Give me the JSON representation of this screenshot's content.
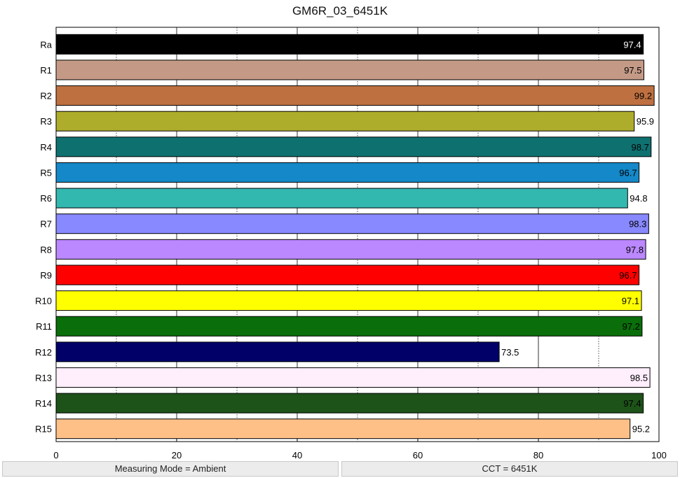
{
  "chart_data": {
    "type": "bar",
    "orientation": "horizontal",
    "title": "GM6R_03_6451K",
    "categories": [
      "Ra",
      "R1",
      "R2",
      "R3",
      "R4",
      "R5",
      "R6",
      "R7",
      "R8",
      "R9",
      "R10",
      "R11",
      "R12",
      "R13",
      "R14",
      "R15"
    ],
    "values": [
      97.4,
      97.5,
      99.2,
      95.9,
      98.7,
      96.7,
      94.8,
      98.3,
      97.8,
      96.7,
      97.1,
      97.2,
      73.5,
      98.5,
      97.4,
      95.2
    ],
    "value_labels": [
      "97.4",
      "97.5",
      "99.2",
      "95.9",
      "98.7",
      "96.7",
      "94.8",
      "98.3",
      "97.8",
      "96.7",
      "97.1",
      "97.2",
      "73.5",
      "98.5",
      "97.4",
      "95.2"
    ],
    "colors": [
      "#000000",
      "#c49a87",
      "#bf7040",
      "#aeac2b",
      "#0f7070",
      "#1488c8",
      "#33b8b0",
      "#8888ff",
      "#bb88ff",
      "#ff0000",
      "#ffff00",
      "#0a6e0a",
      "#000068",
      "#ffeefc",
      "#1d5219",
      "#ffc088"
    ],
    "label_colors": [
      "#ffffff",
      "#000000",
      "#000000",
      "#000000",
      "#000000",
      "#000000",
      "#000000",
      "#000000",
      "#000000",
      "#000000",
      "#000000",
      "#000000",
      "#000000",
      "#000000",
      "#000000",
      "#000000"
    ],
    "x_ticks": [
      "0",
      "20",
      "40",
      "60",
      "80",
      "100"
    ],
    "xlim": [
      0,
      100
    ],
    "grid": "vertical, dotted minor every 10"
  },
  "status": {
    "left": "Measuring Mode = Ambient",
    "right": "CCT = 6451K"
  }
}
